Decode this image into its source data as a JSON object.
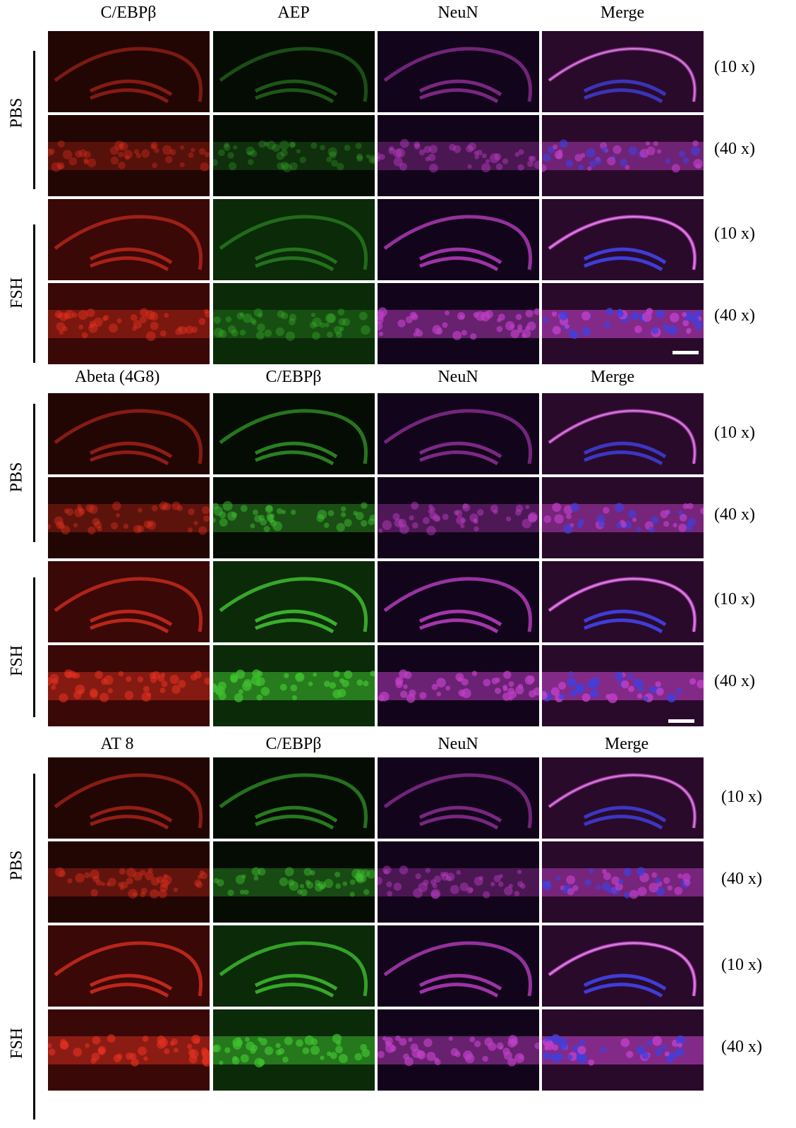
{
  "panels": [
    {
      "headers": [
        "C/EBPβ",
        "AEP",
        "NeuN",
        "Merge"
      ],
      "groups": [
        {
          "label": "PBS",
          "rows": [
            {
              "mag": "(10 x)"
            },
            {
              "mag": "(40 x)"
            }
          ]
        },
        {
          "label": "FSH",
          "rows": [
            {
              "mag": "(10 x)"
            },
            {
              "mag": "(40 x)"
            }
          ]
        }
      ]
    },
    {
      "headers": [
        "Abeta (4G8)",
        "C/EBPβ",
        "NeuN",
        "Merge"
      ],
      "groups": [
        {
          "label": "PBS",
          "rows": [
            {
              "mag": "(10 x)"
            },
            {
              "mag": "(40 x)"
            }
          ]
        },
        {
          "label": "FSH",
          "rows": [
            {
              "mag": "(10 x)"
            },
            {
              "mag": "(40 x)"
            }
          ]
        }
      ]
    },
    {
      "headers": [
        "AT 8",
        "C/EBPβ",
        "NeuN",
        "Merge"
      ],
      "groups": [
        {
          "label": "PBS",
          "rows": [
            {
              "mag": "(10 x)"
            },
            {
              "mag": "(40 x)"
            }
          ]
        },
        {
          "label": "FSH",
          "rows": [
            {
              "mag": "(10 x)"
            },
            {
              "mag": "(40 x)"
            }
          ]
        }
      ]
    }
  ],
  "channel_colors": {
    "red": "#e03020",
    "green": "#40c030",
    "magenta": "#c040c8",
    "blue": "#4040e0"
  }
}
